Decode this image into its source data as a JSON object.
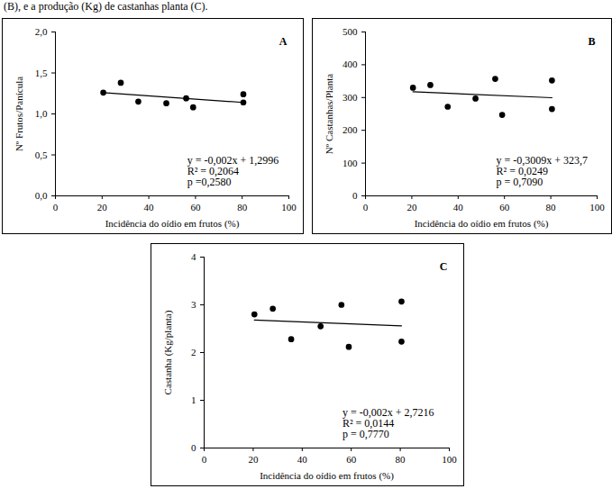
{
  "caption": "(B), e a produção (Kg) de castanhas planta (C).",
  "chart_data": [
    {
      "type": "scatter",
      "title": "A",
      "x_label": "Incidência do oídio em frutos (%)",
      "y_label": "Nº Frutos/Panícula",
      "color": "#000000",
      "marker": "circle",
      "x": [
        20.5,
        28,
        35.5,
        47.5,
        56,
        59,
        80.5,
        80.5
      ],
      "values": [
        1.26,
        1.38,
        1.15,
        1.13,
        1.19,
        1.08,
        1.24,
        1.14
      ],
      "trendline": {
        "x": [
          20.5,
          80.5
        ],
        "values": [
          1.26,
          1.14
        ]
      },
      "annotations": [
        "y = -0,002x + 1,2996",
        "R² = 0,2064",
        "p =0,2580"
      ],
      "xlim": [
        0,
        100
      ],
      "xticks": [
        0,
        20,
        40,
        60,
        80,
        100
      ],
      "ylim": [
        0,
        2
      ],
      "yticks": [
        {
          "value": 0,
          "label": "0,0"
        },
        {
          "value": 0.5,
          "label": "0,5"
        },
        {
          "value": 1,
          "label": "1,0"
        },
        {
          "value": 1.5,
          "label": "1,5"
        },
        {
          "value": 2,
          "label": "2,0"
        }
      ]
    },
    {
      "type": "scatter",
      "title": "B",
      "x_label": "Incidência do oídio em frutos (%)",
      "y_label": "Nº Castanhas/Planta",
      "color": "#000000",
      "marker": "circle",
      "x": [
        20.5,
        28,
        35.5,
        47.5,
        56,
        59,
        80.5,
        80.5
      ],
      "values": [
        330,
        338,
        272,
        297,
        357,
        247,
        352,
        265
      ],
      "trendline": {
        "x": [
          20.5,
          80.5
        ],
        "values": [
          317.5,
          299.5
        ]
      },
      "annotations": [
        "y = -0,3009x + 323,7",
        "R² = 0,0249",
        "p = 0,7090"
      ],
      "xlim": [
        0,
        100
      ],
      "xticks": [
        0,
        20,
        40,
        60,
        80,
        100
      ],
      "ylim": [
        0,
        500
      ],
      "yticks": [
        0,
        100,
        200,
        300,
        400,
        500
      ]
    },
    {
      "type": "scatter",
      "title": "C",
      "x_label": "Incidência do oídio em frutos (%)",
      "y_label": "Castanha (Kg/planta)",
      "color": "#000000",
      "marker": "circle",
      "x": [
        20.5,
        28,
        35.5,
        47.5,
        56,
        59,
        80.5,
        80.5
      ],
      "values": [
        2.8,
        2.92,
        2.28,
        2.55,
        3.0,
        2.12,
        3.07,
        2.23
      ],
      "trendline": {
        "x": [
          20.5,
          80.5
        ],
        "values": [
          2.68,
          2.56
        ]
      },
      "annotations": [
        "y = -0,002x + 2,7216",
        "R² = 0,0144",
        "p = 0,7770"
      ],
      "xlim": [
        0,
        100
      ],
      "xticks": [
        0,
        20,
        40,
        60,
        80,
        100
      ],
      "ylim": [
        0,
        4
      ],
      "yticks": [
        0,
        1,
        2,
        3,
        4
      ]
    }
  ]
}
